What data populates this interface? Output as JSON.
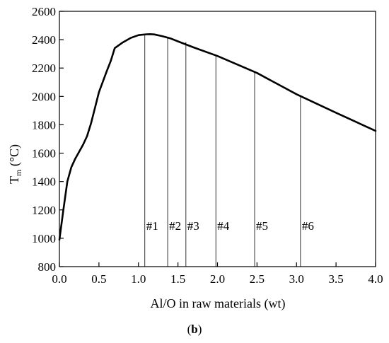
{
  "chart_data": {
    "type": "line",
    "title": "",
    "xlabel": "Al/O in raw materials (wt)",
    "ylabel_main": "T",
    "ylabel_sub": "m",
    "ylabel_unit": " (°C)",
    "xlim": [
      0.0,
      4.0
    ],
    "ylim": [
      800,
      2600
    ],
    "xticks": [
      "0.0",
      "0.5",
      "1.0",
      "1.5",
      "2.0",
      "2.5",
      "3.0",
      "3.5",
      "4.0"
    ],
    "yticks": [
      "800",
      "1000",
      "1200",
      "1400",
      "1600",
      "1800",
      "2000",
      "2200",
      "2400",
      "2600"
    ],
    "grid": false,
    "legend": "none",
    "series": [
      {
        "x": [
          0.0,
          0.05,
          0.1,
          0.15,
          0.2,
          0.3,
          0.35,
          0.4,
          0.45,
          0.5,
          0.6,
          0.65,
          0.7,
          0.75,
          0.8,
          0.9,
          1.0,
          1.1,
          1.15,
          1.2,
          1.3,
          1.4,
          1.5,
          1.7,
          2.0,
          2.5,
          3.0,
          3.5,
          4.0
        ],
        "y": [
          990,
          1200,
          1400,
          1500,
          1560,
          1660,
          1720,
          1810,
          1920,
          2030,
          2180,
          2250,
          2340,
          2360,
          2380,
          2412,
          2432,
          2438,
          2439,
          2437,
          2425,
          2410,
          2388,
          2345,
          2285,
          2165,
          2015,
          1885,
          1757
        ]
      }
    ],
    "markers": [
      {
        "label": "#1",
        "x": 1.08,
        "y": 2438
      },
      {
        "label": "#2",
        "x": 1.37,
        "y": 2415
      },
      {
        "label": "#3",
        "x": 1.6,
        "y": 2383
      },
      {
        "label": "#4",
        "x": 1.98,
        "y": 2290
      },
      {
        "label": "#5",
        "x": 2.47,
        "y": 2170
      },
      {
        "label": "#6",
        "x": 3.05,
        "y": 1995
      }
    ],
    "marker_label_y": 1090
  },
  "caption": {
    "open": "(",
    "letter": "b",
    "close": ")"
  }
}
